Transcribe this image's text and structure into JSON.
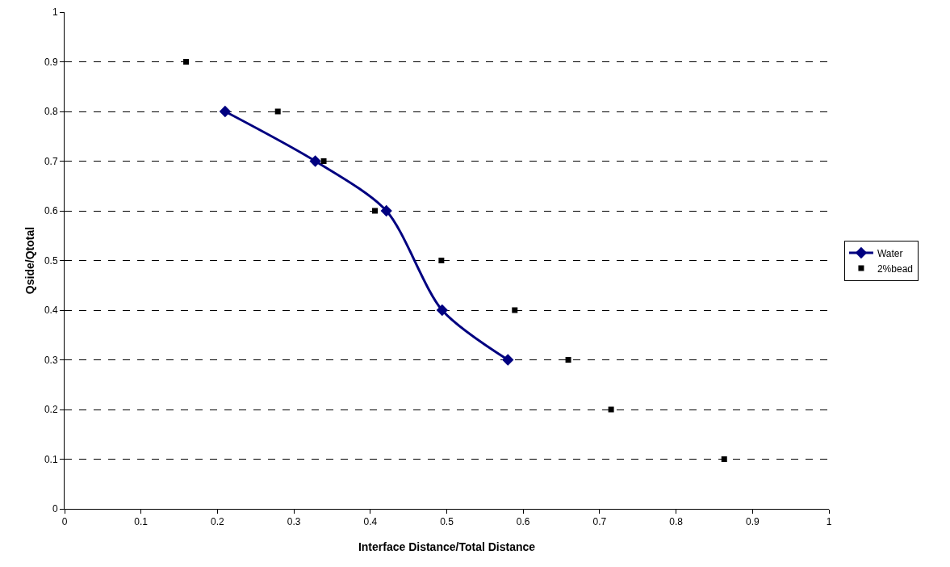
{
  "chart_data": {
    "type": "line",
    "xlabel": "Interface Distance/Total Distance",
    "ylabel": "Qside/Qtotal",
    "xlim": [
      0,
      1
    ],
    "xticks": [
      0,
      0.1,
      0.2,
      0.3,
      0.4,
      0.5,
      0.6,
      0.7,
      0.8,
      0.9,
      1
    ],
    "ylim": [
      0,
      1
    ],
    "yticks": [
      0,
      0.1,
      0.2,
      0.3,
      0.4,
      0.5,
      0.6,
      0.7,
      0.8,
      0.9,
      1
    ],
    "grid": "y",
    "legend": "right",
    "series": [
      {
        "name": "Water",
        "marker": "diamond",
        "color": "#000080",
        "x": [
          0.21,
          0.328,
          0.421,
          0.494,
          0.58
        ],
        "values": [
          0.8,
          0.7,
          0.6,
          0.4,
          0.3
        ]
      },
      {
        "name": "2%bead",
        "type": "scatter",
        "marker": "square",
        "color": "#000000",
        "x": [
          0.159,
          0.279,
          0.339,
          0.406,
          0.493,
          0.589,
          0.659,
          0.715,
          0.863
        ],
        "values": [
          0.9,
          0.8,
          0.7,
          0.6,
          0.5,
          0.4,
          0.3,
          0.2,
          0.1
        ]
      }
    ]
  }
}
